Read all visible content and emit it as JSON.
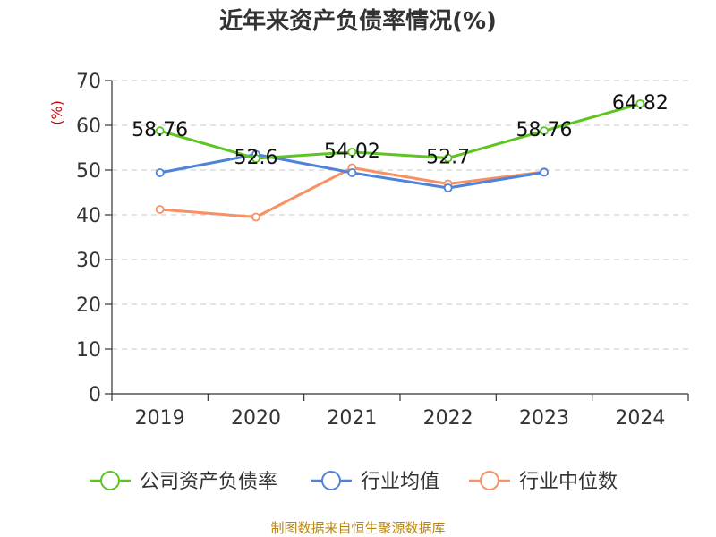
{
  "chart_data": {
    "type": "line",
    "title": "近年来资产负债率情况(%)",
    "ylabel": "(%)",
    "xlabel": "",
    "categories": [
      "2019",
      "2020",
      "2021",
      "2022",
      "2023",
      "2024"
    ],
    "ylim": [
      0,
      70
    ],
    "yticks": [
      "0",
      "10",
      "20",
      "30",
      "40",
      "50",
      "60",
      "70"
    ],
    "grid": true,
    "legend_position": "bottom",
    "series": [
      {
        "name": "公司资产负债率",
        "color": "#5cc522",
        "values": [
          58.76,
          52.6,
          54.02,
          52.7,
          58.76,
          64.82
        ],
        "labels": [
          "58.76",
          "52.6",
          "54.02",
          "52.7",
          "58.76",
          "64.82"
        ]
      },
      {
        "name": "行业均值",
        "color": "#4f82d9",
        "values": [
          49.4,
          53.5,
          49.4,
          46.0,
          49.5,
          null
        ]
      },
      {
        "name": "行业中位数",
        "color": "#f79163",
        "values": [
          41.2,
          39.5,
          50.5,
          46.9,
          49.6,
          null
        ]
      }
    ]
  },
  "footer": {
    "source_text": "制图数据来自恒生聚源数据库"
  }
}
